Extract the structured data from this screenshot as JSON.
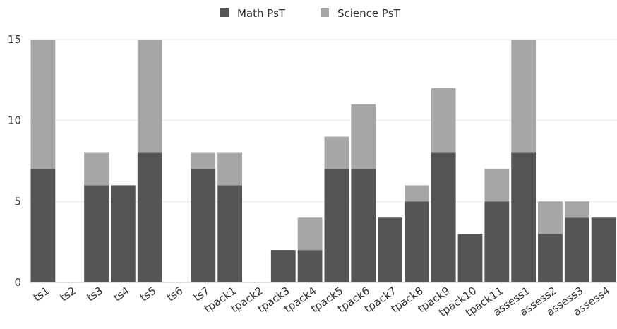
{
  "chart_data": {
    "type": "bar",
    "stacked": true,
    "categories": [
      "ts1",
      "ts2",
      "ts3",
      "ts4",
      "ts5",
      "ts6",
      "ts7",
      "tpack1",
      "tpack2",
      "tpack3",
      "tpack4",
      "tpack5",
      "tpack6",
      "tpack7",
      "tpack8",
      "tpack9",
      "tpack10",
      "tpack11",
      "assess1",
      "assess2",
      "assess3",
      "assess4"
    ],
    "series": [
      {
        "name": "Math PsT",
        "color": "#555555",
        "values": [
          7,
          0,
          6,
          6,
          8,
          0,
          7,
          6,
          0,
          2,
          2,
          7,
          7,
          4,
          5,
          8,
          3,
          5,
          8,
          3,
          4,
          4
        ]
      },
      {
        "name": "Science PsT",
        "color": "#a6a6a6",
        "values": [
          8,
          0,
          2,
          0,
          7,
          0,
          1,
          2,
          0,
          0,
          2,
          2,
          4,
          0,
          1,
          4,
          0,
          2,
          7,
          2,
          1,
          0
        ]
      }
    ],
    "ylim": [
      0,
      15
    ],
    "yticks": [
      0,
      5,
      10,
      15
    ],
    "grid": "horizontal",
    "legend": "top-center",
    "xlabel": "",
    "ylabel": ""
  }
}
